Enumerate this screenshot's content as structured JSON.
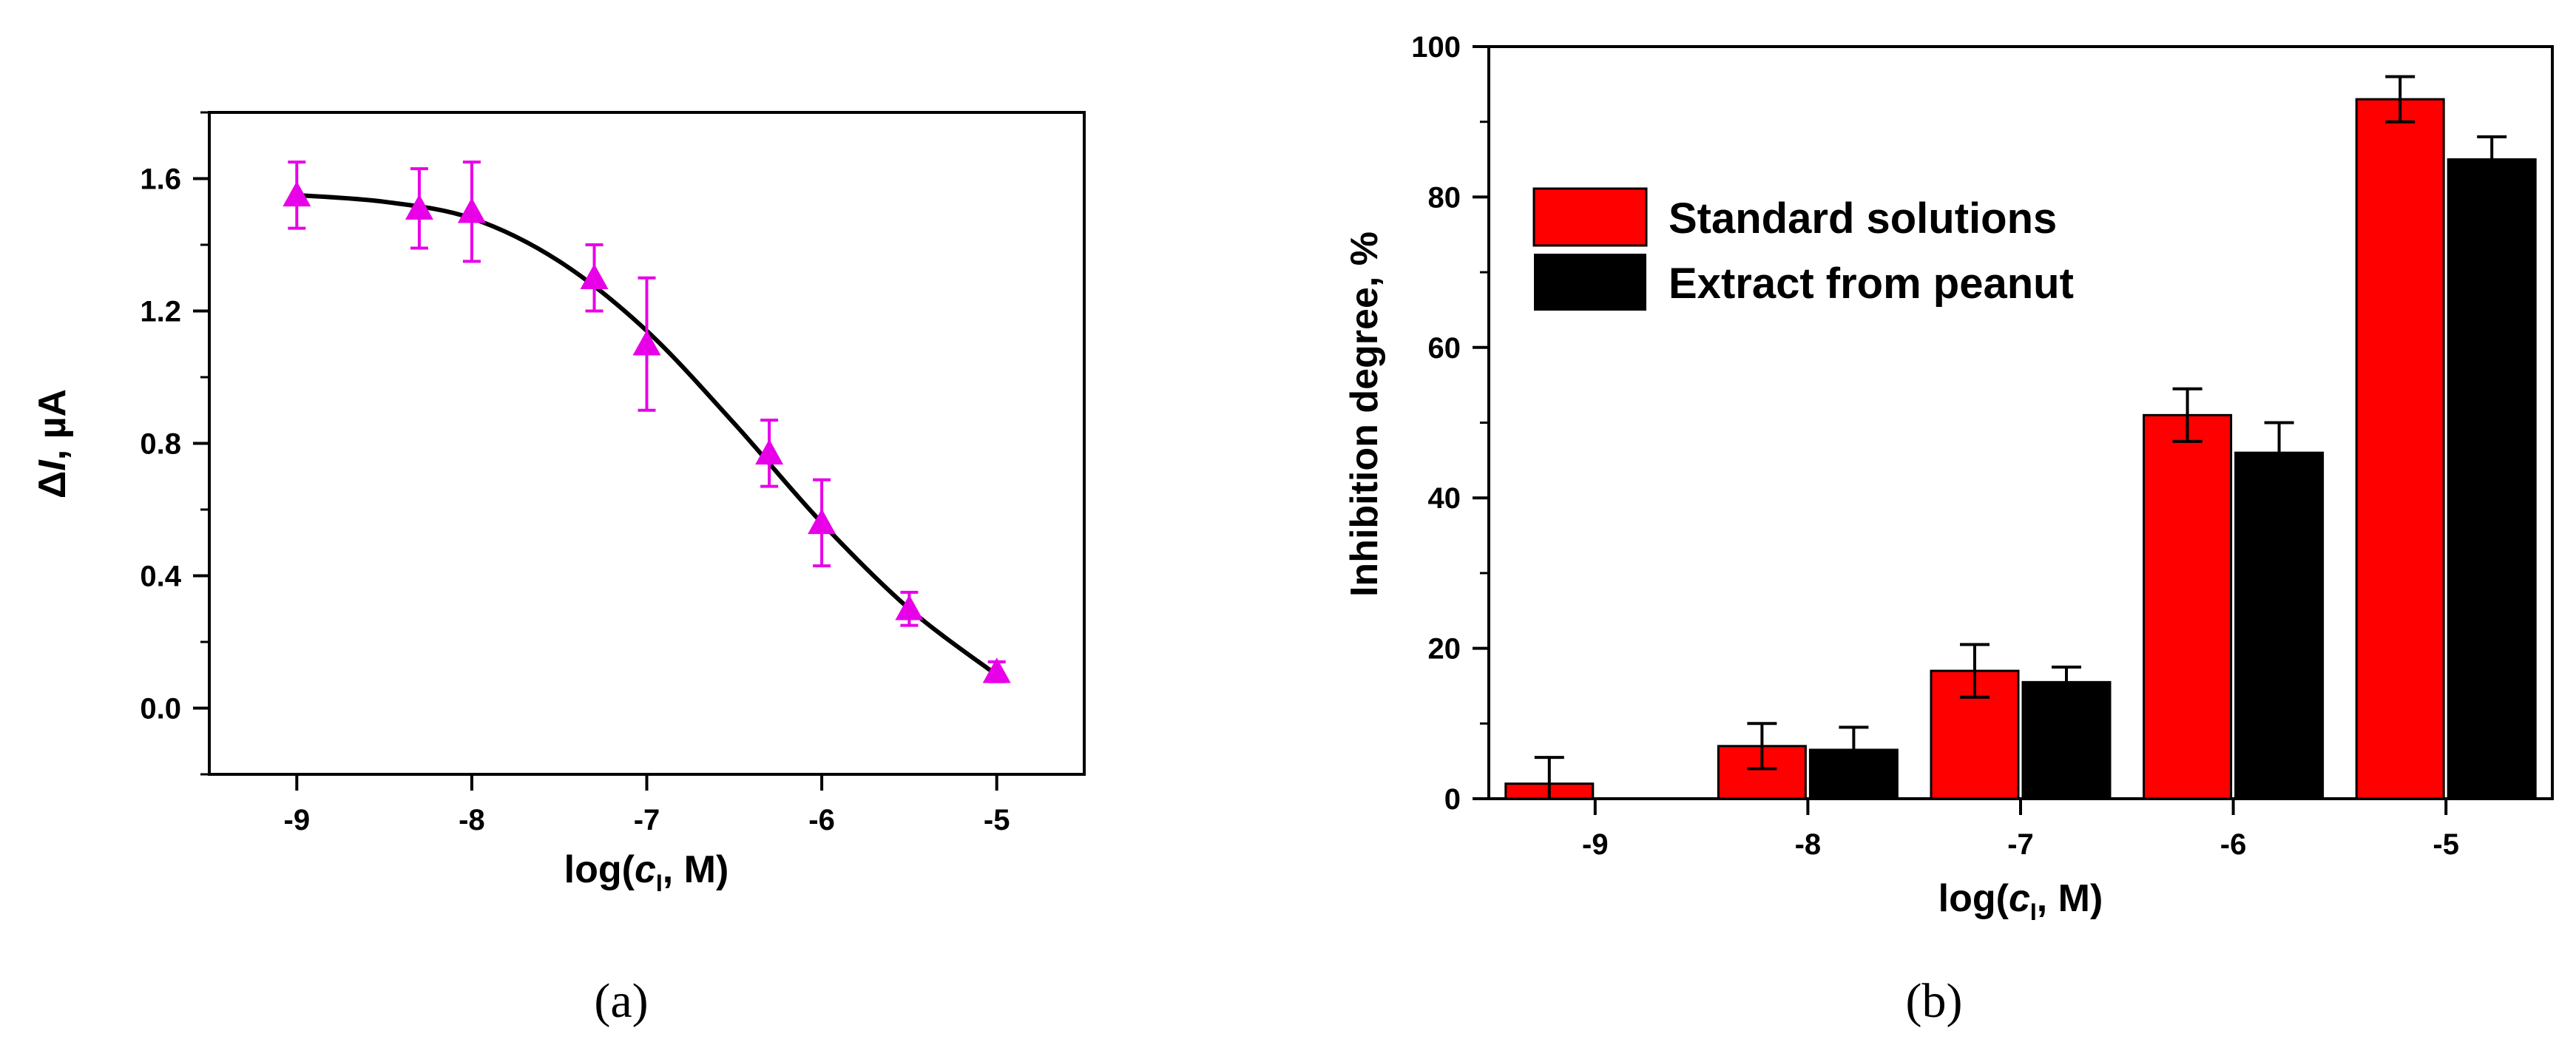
{
  "chart_data": [
    {
      "panel": "(a)",
      "type": "scatter",
      "x": [
        -9,
        -8.3,
        -8,
        -7.3,
        -7,
        -6.3,
        -6,
        -5.5,
        -5
      ],
      "y": [
        1.55,
        1.51,
        1.5,
        1.3,
        1.1,
        0.77,
        0.56,
        0.3,
        0.11
      ],
      "yerr": [
        0.1,
        0.12,
        0.15,
        0.1,
        0.2,
        0.1,
        0.13,
        0.05,
        0.03
      ],
      "fit_curve": {
        "x": [
          -9,
          -8.5,
          -8,
          -7.5,
          -7,
          -6.5,
          -6,
          -5.5,
          -5
        ],
        "y": [
          1.55,
          1.53,
          1.48,
          1.35,
          1.14,
          0.86,
          0.56,
          0.3,
          0.1
        ]
      },
      "marker_color": "#e800e8",
      "line_color": "#000000",
      "xlabel": "log(c_I, M)",
      "ylabel": "ΔI, µA",
      "xticks": [
        "-9",
        "-8",
        "-7",
        "-6",
        "-5"
      ],
      "xtick_values": [
        -9,
        -8,
        -7,
        -6,
        -5
      ],
      "yticks": [
        "0.0",
        "0.4",
        "0.8",
        "1.2",
        "1.6"
      ],
      "ytick_values": [
        0,
        0.4,
        0.8,
        1.2,
        1.6
      ],
      "xlim": [
        -9.5,
        -4.5
      ],
      "ylim": [
        -0.2,
        1.8
      ]
    },
    {
      "panel": "(b)",
      "type": "bar",
      "categories": [
        "-9",
        "-8",
        "-7",
        "-6",
        "-5"
      ],
      "series": [
        {
          "name": "Standard solutions",
          "color": "#ff0000",
          "values": [
            2,
            7,
            17,
            51,
            93
          ],
          "errors": [
            3.5,
            3,
            3.5,
            3.5,
            3
          ]
        },
        {
          "name": "Extract from peanut",
          "color": "#000000",
          "values": [
            0,
            6.5,
            15.5,
            46,
            85
          ],
          "errors": [
            0,
            3,
            2,
            4,
            3
          ]
        }
      ],
      "xlabel": "log(c_I, M)",
      "ylabel": "Inhibition degree, %",
      "yticks": [
        "0",
        "20",
        "40",
        "60",
        "80",
        "100"
      ],
      "ytick_values": [
        0,
        20,
        40,
        60,
        80,
        100
      ],
      "ylim": [
        0,
        100
      ],
      "legend_position": "top-left"
    }
  ]
}
